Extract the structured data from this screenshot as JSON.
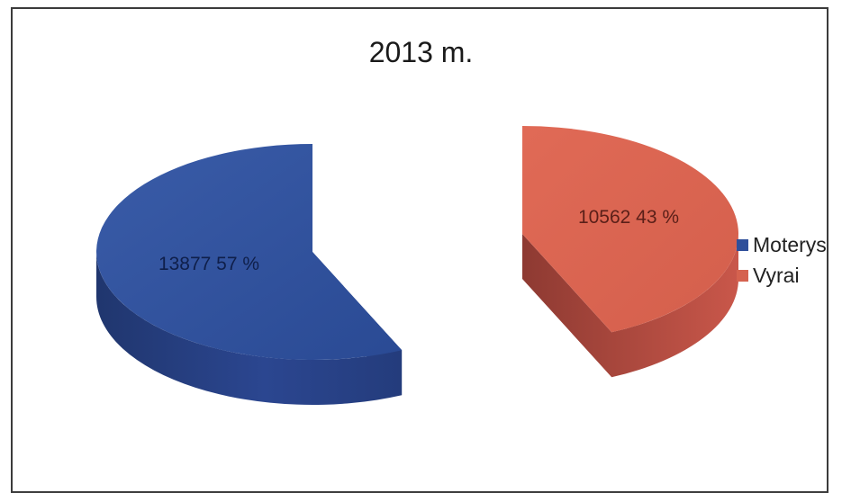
{
  "chart_data": {
    "type": "pie",
    "title": "2013 m.",
    "categories": [
      "Moterys",
      "Vyrai"
    ],
    "values": [
      13877,
      10562
    ],
    "percent": [
      57,
      43
    ],
    "data_labels": [
      "13877 57 %",
      "10562 43 %"
    ],
    "colors": [
      "#2f4f9a",
      "#d5624f"
    ],
    "legend_position": "right"
  }
}
